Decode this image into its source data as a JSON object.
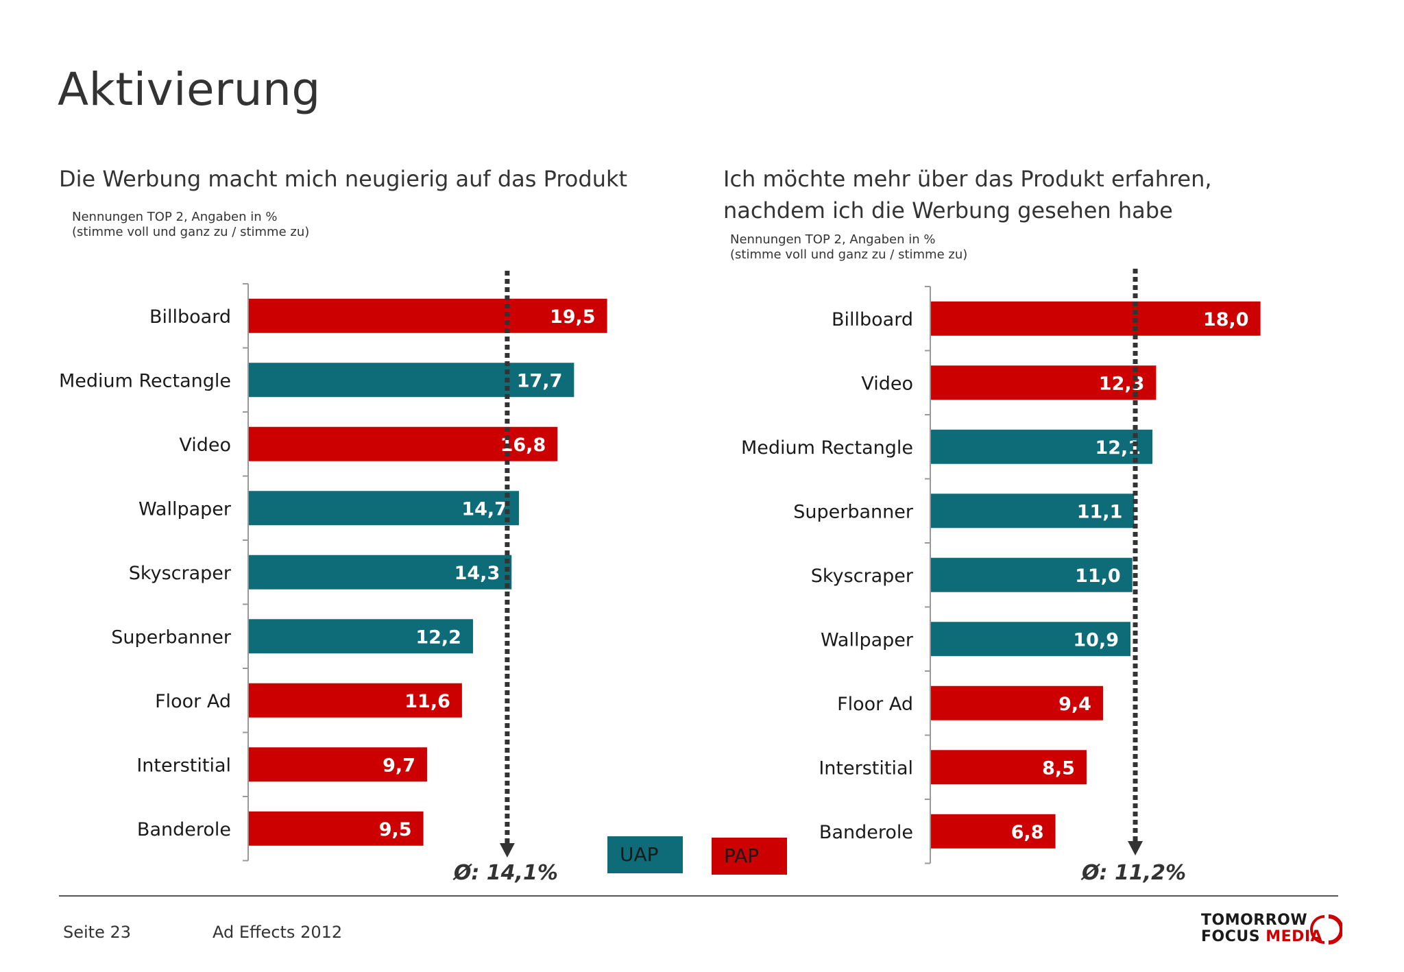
{
  "page": {
    "title": "Aktivierung"
  },
  "colors": {
    "uap": "#0e6b78",
    "pap": "#cc0000",
    "axis": "#999999",
    "avg_line": "#333333"
  },
  "legend": {
    "uap_label": "UAP",
    "pap_label": "PAP"
  },
  "footer": {
    "page_label": "Seite 23",
    "report_label": "Ad Effects 2012",
    "logo_line1": "TOMORROW",
    "logo_focus": "FOCUS",
    "logo_media": "MEDIA"
  },
  "chart_data": [
    {
      "type": "bar",
      "orientation": "horizontal",
      "title": "Die Werbung macht mich neugierig auf das Produkt",
      "note_line1": "Nennungen TOP 2, Angaben in %",
      "note_line2": "(stimme voll und ganz zu / stimme zu)",
      "categories": [
        "Billboard",
        "Medium Rectangle",
        "Video",
        "Wallpaper",
        "Skyscraper",
        "Superbanner",
        "Floor Ad",
        "Interstitial",
        "Banderole"
      ],
      "values": [
        19.5,
        17.7,
        16.8,
        14.7,
        14.3,
        12.2,
        11.6,
        9.7,
        9.5
      ],
      "value_labels": [
        "19,5",
        "17,7",
        "16,8",
        "14,7",
        "14,3",
        "12,2",
        "11,6",
        "9,7",
        "9,5"
      ],
      "groups": [
        "PAP",
        "UAP",
        "PAP",
        "UAP",
        "UAP",
        "UAP",
        "PAP",
        "PAP",
        "PAP"
      ],
      "average": 14.1,
      "average_label": "Ø: 14,1%",
      "xlim": [
        0,
        20
      ]
    },
    {
      "type": "bar",
      "orientation": "horizontal",
      "title_line1": "Ich möchte mehr über das Produkt erfahren,",
      "title_line2": "nachdem ich die Werbung gesehen habe",
      "note_line1": "Nennungen TOP 2, Angaben in %",
      "note_line2": "(stimme voll und ganz zu / stimme zu)",
      "categories": [
        "Billboard",
        "Video",
        "Medium Rectangle",
        "Superbanner",
        "Skyscraper",
        "Wallpaper",
        "Floor Ad",
        "Interstitial",
        "Banderole"
      ],
      "values": [
        18.0,
        12.3,
        12.1,
        11.1,
        11.0,
        10.9,
        9.4,
        8.5,
        6.8
      ],
      "value_labels": [
        "18,0",
        "12,3",
        "12,1",
        "11,1",
        "11,0",
        "10,9",
        "9,4",
        "8,5",
        "6,8"
      ],
      "groups": [
        "PAP",
        "PAP",
        "UAP",
        "UAP",
        "UAP",
        "UAP",
        "PAP",
        "PAP",
        "PAP"
      ],
      "average": 11.2,
      "average_label": "Ø: 11,2%",
      "xlim": [
        0,
        18.5
      ]
    }
  ]
}
